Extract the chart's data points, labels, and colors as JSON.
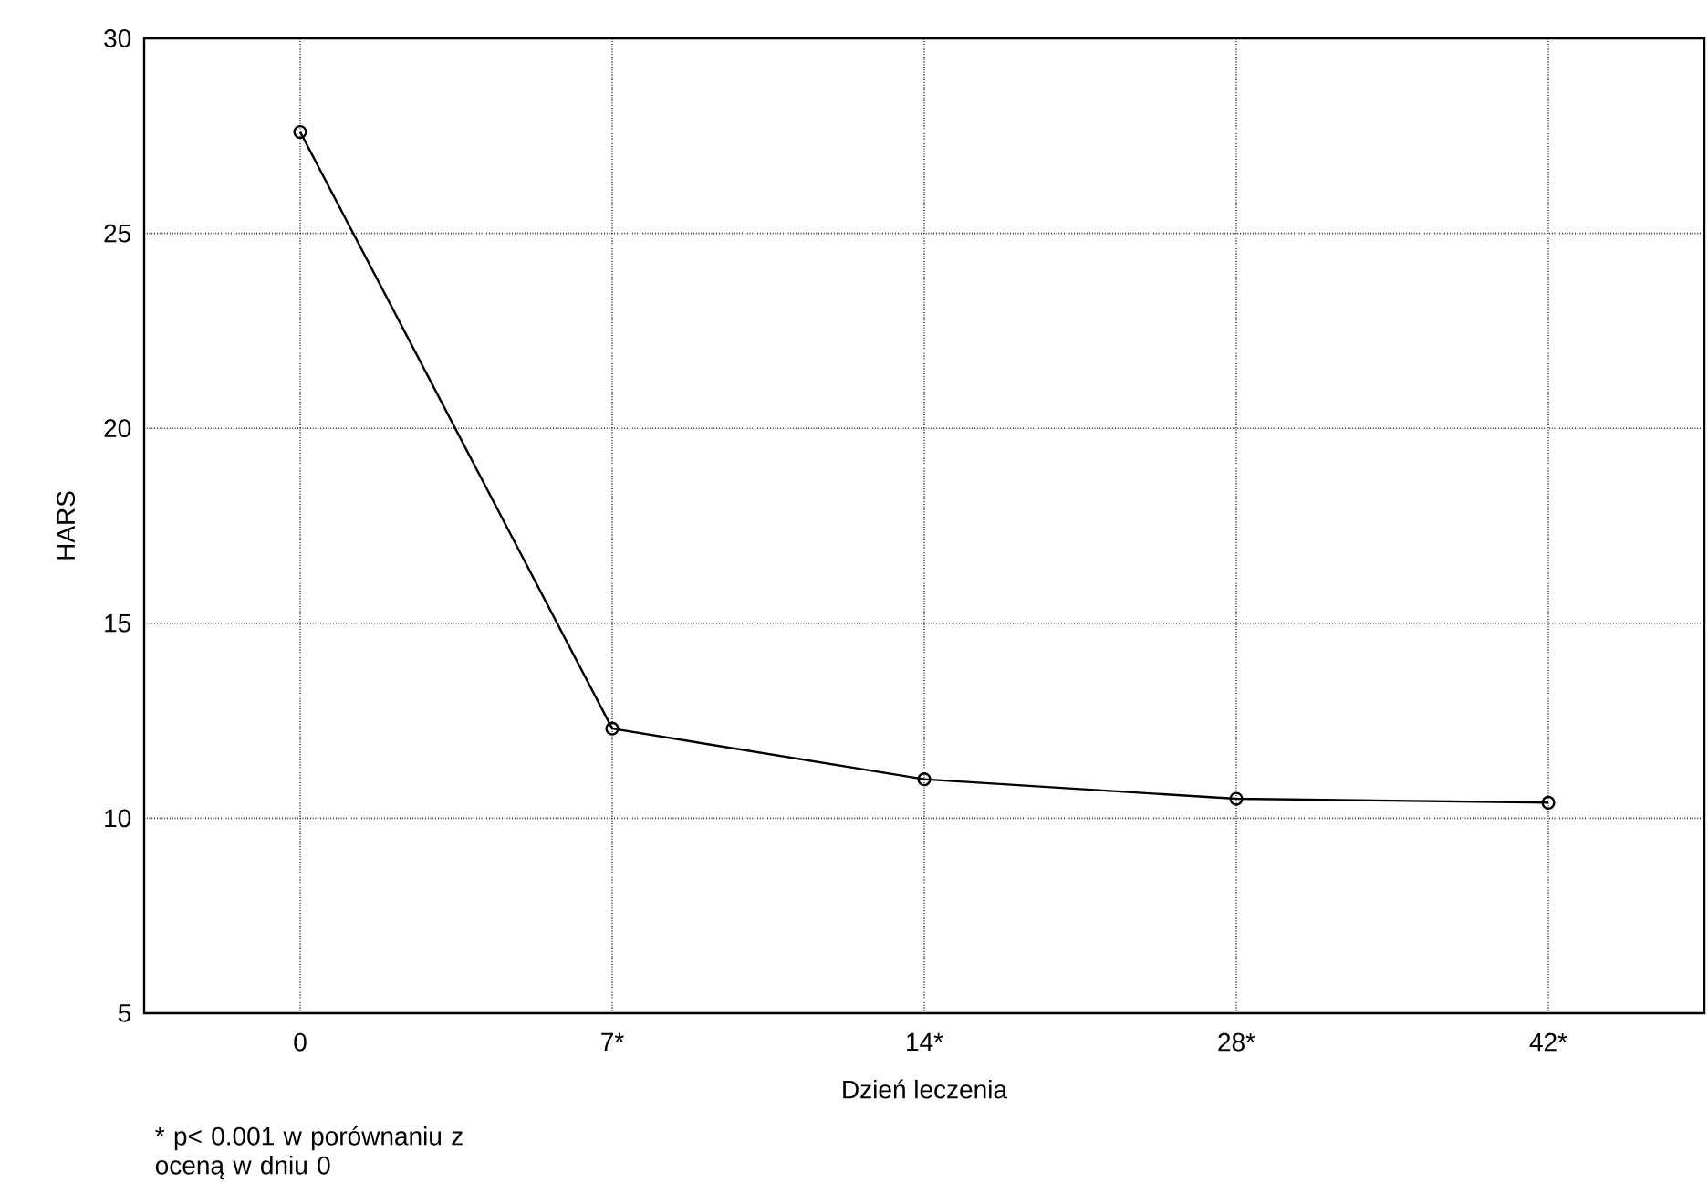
{
  "chart_data": {
    "type": "line",
    "xlabel": "Dzień leczenia",
    "ylabel": "HARS",
    "categories": [
      "0",
      "7*",
      "14*",
      "28*",
      "42*"
    ],
    "values": [
      27.6,
      12.3,
      11.0,
      10.5,
      10.4
    ],
    "color": "#000000",
    "ylim": [
      5,
      30
    ],
    "yticks": [
      5,
      10,
      15,
      20,
      25,
      30
    ],
    "grid": true,
    "marker": "circle",
    "line_style": "solid",
    "annotations": [
      "* p< 0.001 w porównaniu z oceną w dniu 0"
    ]
  }
}
